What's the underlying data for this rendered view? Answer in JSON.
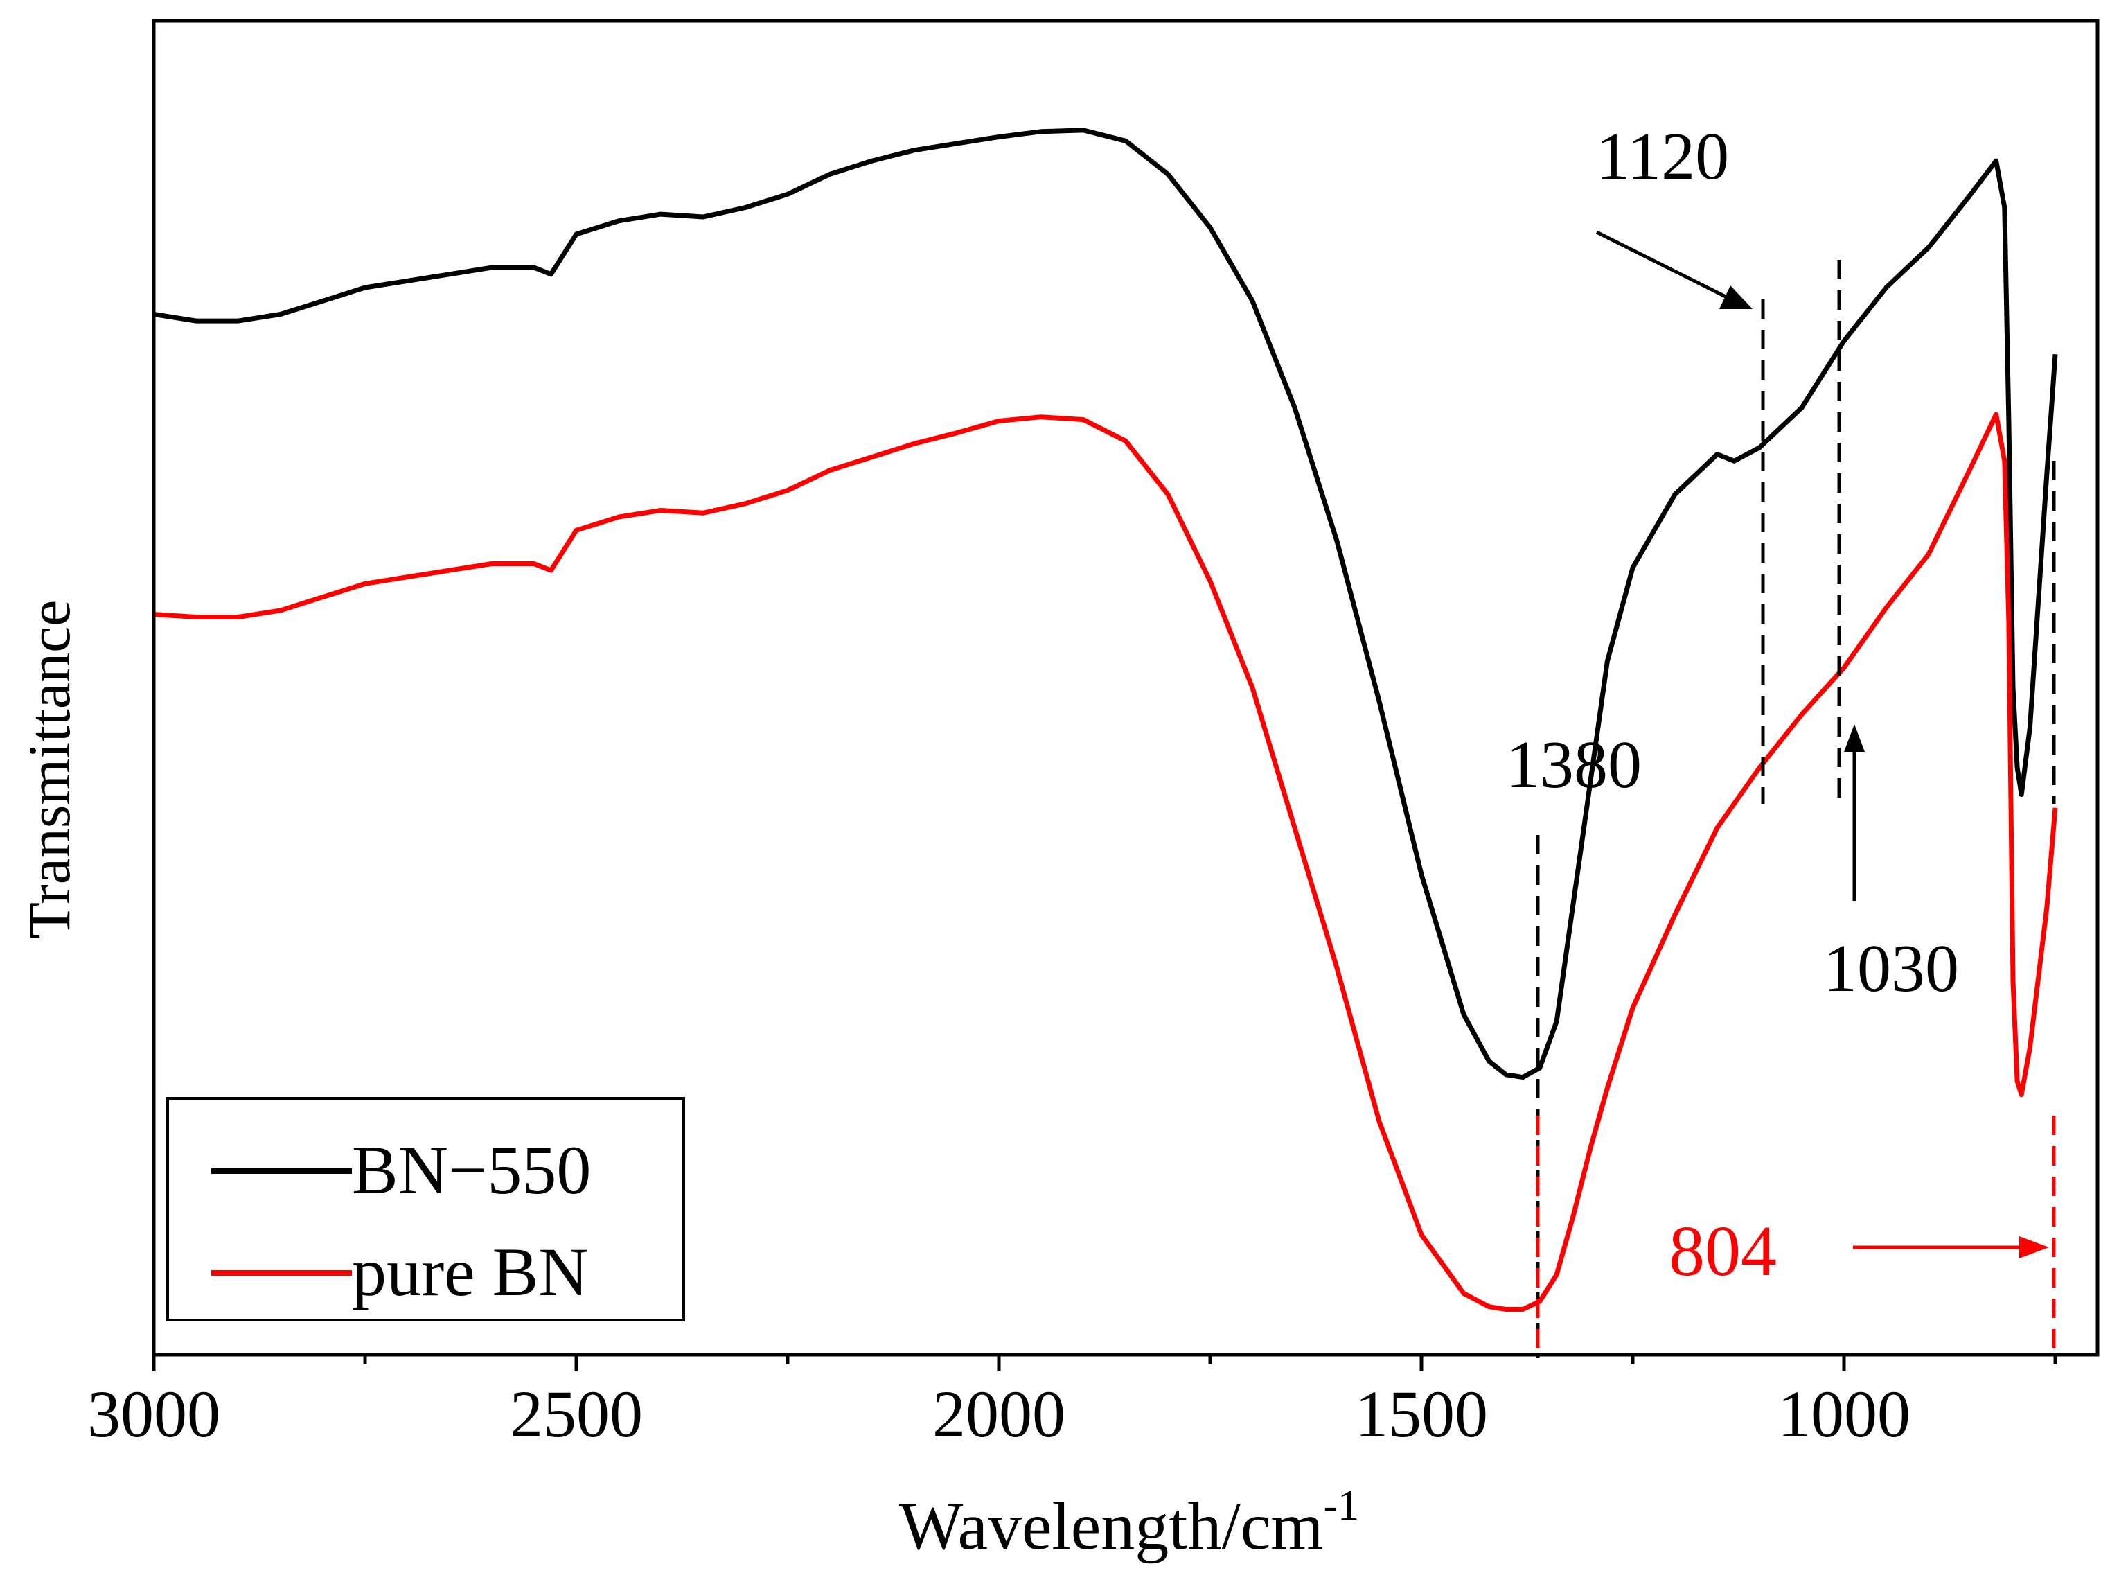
{
  "chart_data": {
    "type": "line",
    "title": "",
    "xlabel": "Wavelength/cm",
    "xlabel_sup": "-1",
    "ylabel": "Transmittance",
    "xlim": [
      3000,
      700
    ],
    "ylim": [
      0,
      100
    ],
    "x_ticks": [
      3000,
      2500,
      2000,
      1500,
      1000
    ],
    "x_tick_labels": [
      "3000",
      "2500",
      "2000",
      "1500",
      "1000"
    ],
    "x_minor_ticks": [
      2750,
      2250,
      1750,
      1250,
      750
    ],
    "legend_position": "bottom-left",
    "series": [
      {
        "name": "BN−550",
        "color": "#000000",
        "points": [
          [
            3000,
            78
          ],
          [
            2950,
            77.5
          ],
          [
            2900,
            77.5
          ],
          [
            2850,
            78
          ],
          [
            2800,
            79
          ],
          [
            2750,
            80
          ],
          [
            2700,
            80.5
          ],
          [
            2650,
            81
          ],
          [
            2600,
            81.5
          ],
          [
            2550,
            81.5
          ],
          [
            2530,
            81
          ],
          [
            2500,
            84
          ],
          [
            2450,
            85
          ],
          [
            2400,
            85.5
          ],
          [
            2350,
            85.3
          ],
          [
            2300,
            86
          ],
          [
            2250,
            87
          ],
          [
            2200,
            88.5
          ],
          [
            2150,
            89.5
          ],
          [
            2100,
            90.3
          ],
          [
            2050,
            90.8
          ],
          [
            2000,
            91.3
          ],
          [
            1950,
            91.7
          ],
          [
            1900,
            91.8
          ],
          [
            1850,
            91
          ],
          [
            1800,
            88.5
          ],
          [
            1750,
            84.5
          ],
          [
            1700,
            79
          ],
          [
            1650,
            71
          ],
          [
            1600,
            61
          ],
          [
            1550,
            49
          ],
          [
            1500,
            36
          ],
          [
            1450,
            25.5
          ],
          [
            1420,
            22
          ],
          [
            1400,
            21
          ],
          [
            1380,
            20.8
          ],
          [
            1360,
            21.5
          ],
          [
            1340,
            25
          ],
          [
            1320,
            34
          ],
          [
            1300,
            43
          ],
          [
            1280,
            52
          ],
          [
            1250,
            59
          ],
          [
            1200,
            64.5
          ],
          [
            1150,
            67.5
          ],
          [
            1130,
            67
          ],
          [
            1100,
            68
          ],
          [
            1050,
            71
          ],
          [
            1030,
            73
          ],
          [
            1000,
            76
          ],
          [
            950,
            80
          ],
          [
            900,
            83
          ],
          [
            850,
            87
          ],
          [
            820,
            89.5
          ],
          [
            810,
            86
          ],
          [
            805,
            70
          ],
          [
            800,
            50
          ],
          [
            795,
            44
          ],
          [
            790,
            42
          ],
          [
            780,
            47
          ],
          [
            760,
            66
          ],
          [
            750,
            75
          ]
        ]
      },
      {
        "name": "pure BN",
        "color": "#ff0000",
        "points": [
          [
            3000,
            55.5
          ],
          [
            2950,
            55.3
          ],
          [
            2900,
            55.3
          ],
          [
            2850,
            55.8
          ],
          [
            2800,
            56.8
          ],
          [
            2750,
            57.8
          ],
          [
            2700,
            58.3
          ],
          [
            2650,
            58.8
          ],
          [
            2600,
            59.3
          ],
          [
            2550,
            59.3
          ],
          [
            2530,
            58.8
          ],
          [
            2500,
            61.8
          ],
          [
            2450,
            62.8
          ],
          [
            2400,
            63.3
          ],
          [
            2350,
            63.1
          ],
          [
            2300,
            63.8
          ],
          [
            2250,
            64.8
          ],
          [
            2200,
            66.3
          ],
          [
            2150,
            67.3
          ],
          [
            2100,
            68.3
          ],
          [
            2050,
            69.1
          ],
          [
            2000,
            70
          ],
          [
            1950,
            70.3
          ],
          [
            1900,
            70.1
          ],
          [
            1850,
            68.5
          ],
          [
            1800,
            64.5
          ],
          [
            1750,
            58
          ],
          [
            1700,
            50
          ],
          [
            1650,
            39.5
          ],
          [
            1600,
            29
          ],
          [
            1550,
            17.5
          ],
          [
            1500,
            9
          ],
          [
            1450,
            4.6
          ],
          [
            1420,
            3.6
          ],
          [
            1400,
            3.4
          ],
          [
            1380,
            3.4
          ],
          [
            1360,
            4
          ],
          [
            1340,
            6
          ],
          [
            1320,
            10.5
          ],
          [
            1300,
            15.5
          ],
          [
            1280,
            20
          ],
          [
            1250,
            26
          ],
          [
            1200,
            33
          ],
          [
            1150,
            39.5
          ],
          [
            1100,
            44
          ],
          [
            1050,
            48
          ],
          [
            1000,
            51.5
          ],
          [
            950,
            56
          ],
          [
            900,
            60
          ],
          [
            850,
            66.5
          ],
          [
            820,
            70.5
          ],
          [
            810,
            67
          ],
          [
            805,
            55
          ],
          [
            800,
            28
          ],
          [
            795,
            20.5
          ],
          [
            790,
            19.5
          ],
          [
            780,
            23
          ],
          [
            760,
            33.5
          ],
          [
            750,
            41
          ]
        ]
      }
    ],
    "annotations": [
      {
        "text": "1380",
        "color": "#000000",
        "x": 1380
      },
      {
        "text": "1120",
        "color": "#000000",
        "x": 1120
      },
      {
        "text": "1030",
        "color": "#000000",
        "x": 1030
      },
      {
        "text": "804",
        "color": "#ff0000",
        "x": 804
      }
    ]
  }
}
